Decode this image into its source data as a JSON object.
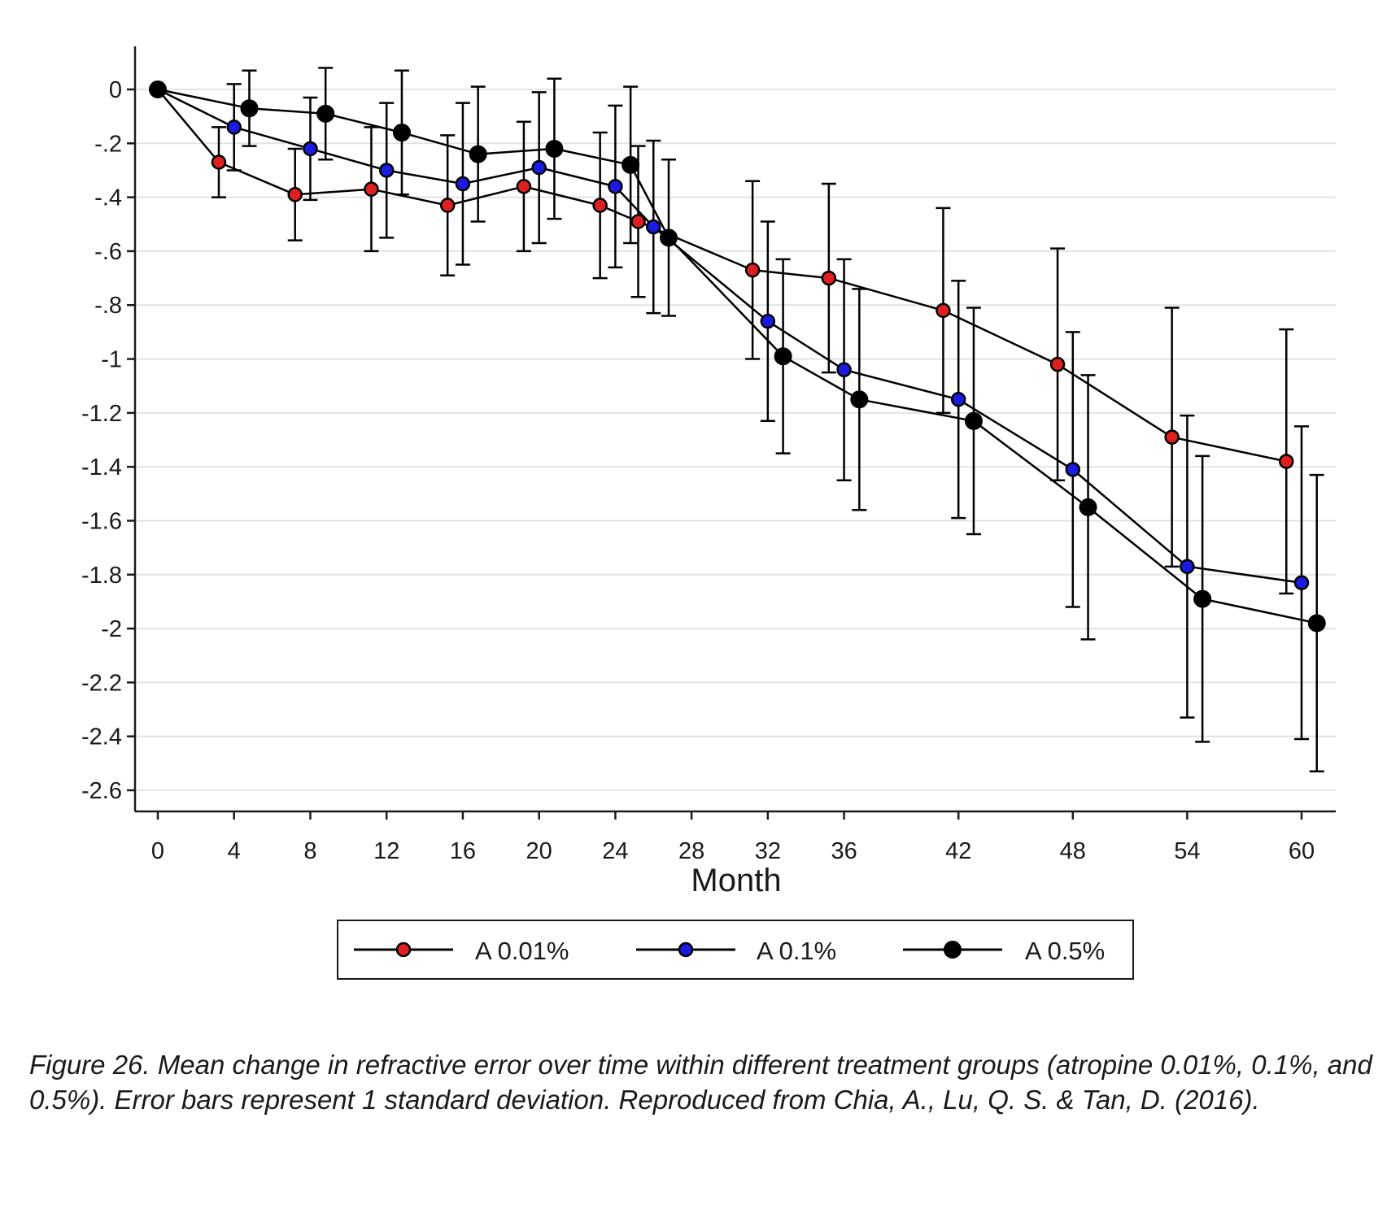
{
  "chart_data": {
    "type": "line",
    "title": "",
    "xlabel": "Month",
    "ylabel": "",
    "x_ticks": [
      0,
      4,
      8,
      12,
      16,
      20,
      24,
      28,
      32,
      36,
      42,
      48,
      54,
      60
    ],
    "y_ticks": [
      0,
      -0.2,
      -0.4,
      -0.6,
      -0.8,
      -1,
      -1.2,
      -1.4,
      -1.6,
      -1.8,
      -2,
      -2.2,
      -2.4,
      -2.6
    ],
    "y_tick_labels": [
      "0",
      "-.2",
      "-.4",
      "-.6",
      "-.8",
      "-1",
      "-1.2",
      "-1.4",
      "-1.6",
      "-1.8",
      "-2",
      "-2.2",
      "-2.4",
      "-2.6"
    ],
    "ylim": [
      -2.68,
      0.16
    ],
    "grid": true,
    "legend_position": "bottom",
    "error_bars": "1 standard deviation",
    "series": [
      {
        "name": "A 0.01%",
        "color": "#e02020",
        "points": [
          {
            "x": 0,
            "y": 0,
            "sd": 0
          },
          {
            "x": 3.2,
            "y": -0.27,
            "sd": 0.13
          },
          {
            "x": 7.2,
            "y": -0.39,
            "sd": 0.17
          },
          {
            "x": 11.2,
            "y": -0.37,
            "sd": 0.23
          },
          {
            "x": 15.2,
            "y": -0.43,
            "sd": 0.26
          },
          {
            "x": 19.2,
            "y": -0.36,
            "sd": 0.24
          },
          {
            "x": 23.2,
            "y": -0.43,
            "sd": 0.27
          },
          {
            "x": 25.2,
            "y": -0.49,
            "sd": 0.28
          },
          {
            "x": 31.2,
            "y": -0.67,
            "sd": 0.33
          },
          {
            "x": 35.2,
            "y": -0.7,
            "sd": 0.35
          },
          {
            "x": 41.2,
            "y": -0.82,
            "sd": 0.38
          },
          {
            "x": 47.2,
            "y": -1.02,
            "sd": 0.43
          },
          {
            "x": 53.2,
            "y": -1.29,
            "sd": 0.48
          },
          {
            "x": 59.2,
            "y": -1.38,
            "sd": 0.49
          }
        ]
      },
      {
        "name": "A 0.1%",
        "color": "#1a1ae0",
        "points": [
          {
            "x": 0,
            "y": 0,
            "sd": 0
          },
          {
            "x": 4,
            "y": -0.14,
            "sd": 0.16
          },
          {
            "x": 8,
            "y": -0.22,
            "sd": 0.19
          },
          {
            "x": 12,
            "y": -0.3,
            "sd": 0.25
          },
          {
            "x": 16,
            "y": -0.35,
            "sd": 0.3
          },
          {
            "x": 20,
            "y": -0.29,
            "sd": 0.28
          },
          {
            "x": 24,
            "y": -0.36,
            "sd": 0.3
          },
          {
            "x": 26,
            "y": -0.51,
            "sd": 0.32
          },
          {
            "x": 32,
            "y": -0.86,
            "sd": 0.37
          },
          {
            "x": 36,
            "y": -1.04,
            "sd": 0.41
          },
          {
            "x": 42,
            "y": -1.15,
            "sd": 0.44
          },
          {
            "x": 48,
            "y": -1.41,
            "sd": 0.51
          },
          {
            "x": 54,
            "y": -1.77,
            "sd": 0.56
          },
          {
            "x": 60,
            "y": -1.83,
            "sd": 0.58
          }
        ]
      },
      {
        "name": "A 0.5%",
        "color": "#000000",
        "points": [
          {
            "x": 0,
            "y": 0,
            "sd": 0
          },
          {
            "x": 4.8,
            "y": -0.07,
            "sd": 0.14
          },
          {
            "x": 8.8,
            "y": -0.09,
            "sd": 0.17
          },
          {
            "x": 12.8,
            "y": -0.16,
            "sd": 0.23
          },
          {
            "x": 16.8,
            "y": -0.24,
            "sd": 0.25
          },
          {
            "x": 20.8,
            "y": -0.22,
            "sd": 0.26
          },
          {
            "x": 24.8,
            "y": -0.28,
            "sd": 0.29
          },
          {
            "x": 26.8,
            "y": -0.55,
            "sd": 0.29
          },
          {
            "x": 32.8,
            "y": -0.99,
            "sd": 0.36
          },
          {
            "x": 36.8,
            "y": -1.15,
            "sd": 0.41
          },
          {
            "x": 42.8,
            "y": -1.23,
            "sd": 0.42
          },
          {
            "x": 48.8,
            "y": -1.55,
            "sd": 0.49
          },
          {
            "x": 54.8,
            "y": -1.89,
            "sd": 0.53
          },
          {
            "x": 60.8,
            "y": -1.98,
            "sd": 0.55
          }
        ]
      }
    ]
  },
  "caption": "Figure 26. Mean change in refractive error over time within different treatment groups (atropine 0.01%, 0.1%, and 0.5%). Error bars represent 1 standard deviation. Reproduced from Chia, A., Lu, Q. S. & Tan, D. (2016)."
}
